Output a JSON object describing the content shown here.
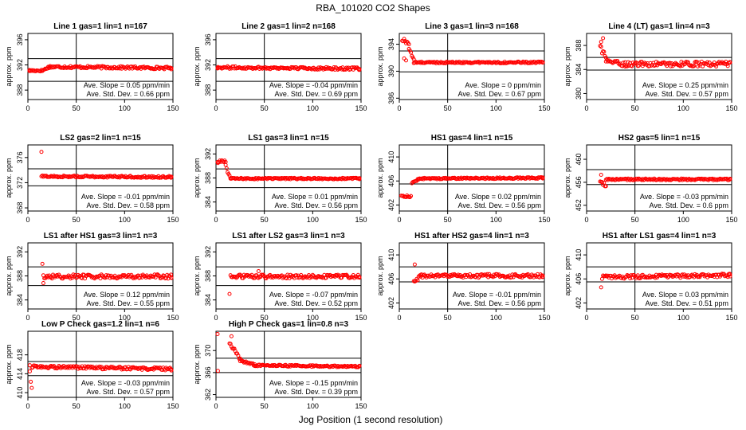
{
  "figure": {
    "title": "RBA_101020  CO2 Shapes",
    "xlabel": "Jog Position (1 second resolution)"
  },
  "colors": {
    "points": "#ff0000",
    "axes": "#000000"
  },
  "chart_data": [
    {
      "type": "scatter",
      "title": "Line 1 gas=1 lin=1 n=167",
      "ylabel": "approx. ppm",
      "xlim": [
        0,
        150
      ],
      "ylim": [
        386.5,
        397
      ],
      "xticks": [
        0,
        50,
        100,
        150
      ],
      "yticks": [
        388,
        392,
        396
      ],
      "hlines": [
        389.4,
        393.0
      ],
      "vline": 50,
      "series": [
        {
          "segments": [
            {
              "x0": 0,
              "x1": 15,
              "y0": 391.1,
              "y1": 391.1,
              "noise": 0.15
            },
            {
              "x0": 15,
              "x1": 22,
              "y0": 391.1,
              "y1": 391.7,
              "noise": 0.15
            },
            {
              "x0": 22,
              "x1": 150,
              "y0": 391.7,
              "y1": 391.5,
              "noise": 0.2
            }
          ],
          "outliers": []
        }
      ],
      "slope": "Ave. Slope =  0.05  ppm/min",
      "stddev": "Ave. Std. Dev. =  0.66  ppm"
    },
    {
      "type": "scatter",
      "title": "Line 2 gas=1 lin=2 n=168",
      "ylabel": "approx. ppm",
      "xlim": [
        0,
        150
      ],
      "ylim": [
        386.5,
        397
      ],
      "xticks": [
        0,
        50,
        100,
        150
      ],
      "yticks": [
        388,
        392,
        396
      ],
      "hlines": [
        389.4,
        393.0
      ],
      "vline": 50,
      "series": [
        {
          "segments": [
            {
              "x0": 0,
              "x1": 150,
              "y0": 391.6,
              "y1": 391.4,
              "noise": 0.2
            }
          ],
          "outliers": []
        }
      ],
      "slope": "Ave. Slope =  -0.04  ppm/min",
      "stddev": "Ave. Std. Dev. =  0.69  ppm"
    },
    {
      "type": "scatter",
      "title": "Line 3 gas=1 lin=3 n=168",
      "ylabel": "approx. ppm",
      "xlim": [
        0,
        150
      ],
      "ylim": [
        385.8,
        395.6
      ],
      "xticks": [
        0,
        50,
        100,
        150
      ],
      "yticks": [
        386,
        390,
        394
      ],
      "hlines": [
        389.9,
        393.0
      ],
      "vline": 50,
      "series": [
        {
          "segments": [
            {
              "x0": 3,
              "x1": 10,
              "y0": 394.6,
              "y1": 394.2,
              "noise": 0.4
            },
            {
              "x0": 10,
              "x1": 15,
              "y0": 393.5,
              "y1": 391.5,
              "noise": 0.3
            },
            {
              "x0": 15,
              "x1": 150,
              "y0": 391.3,
              "y1": 391.3,
              "noise": 0.12
            }
          ],
          "outliers": [
            {
              "x": 7,
              "y": 391.6
            },
            {
              "x": 5,
              "y": 391.9
            }
          ]
        }
      ],
      "slope": "Ave. Slope =  0  ppm/min",
      "stddev": "Ave. Std. Dev. =  0.67  ppm"
    },
    {
      "type": "scatter",
      "title": "Line 4 (LT) gas=1 lin=4 n=3",
      "ylabel": "approx. ppm",
      "xlim": [
        0,
        150
      ],
      "ylim": [
        379,
        390
      ],
      "xticks": [
        0,
        50,
        100,
        150
      ],
      "yticks": [
        380,
        384,
        388
      ],
      "hlines": [
        383.9,
        386.0
      ],
      "vline": 50,
      "series": [
        {
          "segments": [
            {
              "x0": 14,
              "x1": 20,
              "y0": 388,
              "y1": 385.6,
              "noise": 0.6
            },
            {
              "x0": 20,
              "x1": 40,
              "y0": 385.5,
              "y1": 384.8,
              "noise": 0.35
            },
            {
              "x0": 40,
              "x1": 150,
              "y0": 384.9,
              "y1": 384.9,
              "noise": 0.4
            }
          ],
          "outliers": [
            {
              "x": 15,
              "y": 388.6
            },
            {
              "x": 17,
              "y": 389.2
            }
          ]
        }
      ],
      "slope": "Ave. Slope =  0.25  ppm/min",
      "stddev": "Ave. Std. Dev. =  0.57  ppm"
    },
    {
      "type": "scatter",
      "title": "LS2 gas=2 lin=1 n=15",
      "ylabel": "approx. ppm",
      "xlim": [
        0,
        150
      ],
      "ylim": [
        367.5,
        378
      ],
      "xticks": [
        0,
        50,
        100,
        150
      ],
      "yticks": [
        368,
        372,
        376
      ],
      "hlines": [
        371.5,
        374.2
      ],
      "vline": 50,
      "series": [
        {
          "segments": [
            {
              "x0": 14,
              "x1": 150,
              "y0": 373.0,
              "y1": 372.9,
              "noise": 0.15
            }
          ],
          "outliers": [
            {
              "x": 14,
              "y": 376.9
            }
          ]
        }
      ],
      "slope": "Ave. Slope =  -0.01  ppm/min",
      "stddev": "Ave. Std. Dev. =  0.58  ppm"
    },
    {
      "type": "scatter",
      "title": "LS1 gas=3 lin=1 n=15",
      "ylabel": "approx. ppm",
      "xlim": [
        0,
        150
      ],
      "ylim": [
        382.5,
        393.5
      ],
      "xticks": [
        0,
        50,
        100,
        150
      ],
      "yticks": [
        384,
        388,
        392
      ],
      "hlines": [
        386.4,
        389.5
      ],
      "vline": 50,
      "series": [
        {
          "segments": [
            {
              "x0": 1,
              "x1": 10,
              "y0": 390.6,
              "y1": 390.8,
              "noise": 0.25
            },
            {
              "x0": 10,
              "x1": 15,
              "y0": 390,
              "y1": 388,
              "noise": 0.3
            },
            {
              "x0": 15,
              "x1": 150,
              "y0": 387.9,
              "y1": 387.9,
              "noise": 0.12
            }
          ],
          "outliers": []
        }
      ],
      "slope": "Ave. Slope =  0.01  ppm/min",
      "stddev": "Ave. Std. Dev. =  0.56  ppm"
    },
    {
      "type": "scatter",
      "title": "HS1 gas=4 lin=1 n=15",
      "ylabel": "approx. ppm",
      "xlim": [
        0,
        150
      ],
      "ylim": [
        401,
        412
      ],
      "xticks": [
        0,
        50,
        100,
        150
      ],
      "yticks": [
        402,
        406,
        410
      ],
      "hlines": [
        405.5,
        408.0
      ],
      "vline": 50,
      "series": [
        {
          "segments": [
            {
              "x0": 2,
              "x1": 12,
              "y0": 403.5,
              "y1": 403.4,
              "noise": 0.15
            },
            {
              "x0": 13,
              "x1": 20,
              "y0": 405.6,
              "y1": 406.3,
              "noise": 0.2
            },
            {
              "x0": 20,
              "x1": 150,
              "y0": 406.4,
              "y1": 406.5,
              "noise": 0.12
            }
          ],
          "outliers": []
        }
      ],
      "slope": "Ave. Slope =  0.02  ppm/min",
      "stddev": "Ave. Std. Dev. =  0.56  ppm"
    },
    {
      "type": "scatter",
      "title": "HS2 gas=5 lin=1 n=15",
      "ylabel": "approx. ppm",
      "xlim": [
        0,
        150
      ],
      "ylim": [
        451,
        462.5
      ],
      "xticks": [
        0,
        50,
        100,
        150
      ],
      "yticks": [
        452,
        456,
        460
      ],
      "hlines": [
        455.6,
        458.2
      ],
      "vline": 50,
      "series": [
        {
          "segments": [
            {
              "x0": 14,
              "x1": 20,
              "y0": 456,
              "y1": 455.4,
              "noise": 0.3
            },
            {
              "x0": 20,
              "x1": 150,
              "y0": 456.5,
              "y1": 456.5,
              "noise": 0.15
            }
          ],
          "outliers": [
            {
              "x": 15,
              "y": 457.3
            }
          ]
        }
      ],
      "slope": "Ave. Slope =  -0.03  ppm/min",
      "stddev": "Ave. Std. Dev. =  0.6  ppm"
    },
    {
      "type": "scatter",
      "title": "LS1 after HS1 gas=3 lin=1 n=3",
      "ylabel": "approx. ppm",
      "xlim": [
        0,
        150
      ],
      "ylim": [
        382.5,
        393.5
      ],
      "xticks": [
        0,
        50,
        100,
        150
      ],
      "yticks": [
        384,
        388,
        392
      ],
      "hlines": [
        386.4,
        389.5
      ],
      "vline": 50,
      "series": [
        {
          "segments": [
            {
              "x0": 16,
              "x1": 150,
              "y0": 387.9,
              "y1": 387.9,
              "noise": 0.35
            }
          ],
          "outliers": [
            {
              "x": 15,
              "y": 390.0
            },
            {
              "x": 16,
              "y": 386.8
            }
          ]
        }
      ],
      "slope": "Ave. Slope =  0.12  ppm/min",
      "stddev": "Ave. Std. Dev. =  0.55  ppm"
    },
    {
      "type": "scatter",
      "title": "LS1 after LS2 gas=3 lin=1 n=3",
      "ylabel": "approx. ppm",
      "xlim": [
        0,
        150
      ],
      "ylim": [
        382.5,
        393.5
      ],
      "xticks": [
        0,
        50,
        100,
        150
      ],
      "yticks": [
        384,
        388,
        392
      ],
      "hlines": [
        386.4,
        389.5
      ],
      "vline": 50,
      "series": [
        {
          "segments": [
            {
              "x0": 15,
              "x1": 150,
              "y0": 387.9,
              "y1": 387.9,
              "noise": 0.3
            }
          ],
          "outliers": [
            {
              "x": 14,
              "y": 385.0
            },
            {
              "x": 44,
              "y": 388.8
            }
          ]
        }
      ],
      "slope": "Ave. Slope =  -0.07  ppm/min",
      "stddev": "Ave. Std. Dev. =  0.52  ppm"
    },
    {
      "type": "scatter",
      "title": "HS1 after HS2 gas=4 lin=1 n=3",
      "ylabel": "approx. ppm",
      "xlim": [
        0,
        150
      ],
      "ylim": [
        401,
        412
      ],
      "xticks": [
        0,
        50,
        100,
        150
      ],
      "yticks": [
        402,
        406,
        410
      ],
      "hlines": [
        405.5,
        408.0
      ],
      "vline": 50,
      "series": [
        {
          "segments": [
            {
              "x0": 15,
              "x1": 22,
              "y0": 405.2,
              "y1": 406.8,
              "noise": 0.5
            },
            {
              "x0": 22,
              "x1": 150,
              "y0": 406.5,
              "y1": 406.5,
              "noise": 0.3
            }
          ],
          "outliers": [
            {
              "x": 16,
              "y": 408.4
            }
          ]
        }
      ],
      "slope": "Ave. Slope =  -0.01  ppm/min",
      "stddev": "Ave. Std. Dev. =  0.56  ppm"
    },
    {
      "type": "scatter",
      "title": "HS1 after LS1 gas=4 lin=1 n=3",
      "ylabel": "approx. ppm",
      "xlim": [
        0,
        150
      ],
      "ylim": [
        401,
        412
      ],
      "xticks": [
        0,
        50,
        100,
        150
      ],
      "yticks": [
        402,
        406,
        410
      ],
      "hlines": [
        405.5,
        408.0
      ],
      "vline": 50,
      "series": [
        {
          "segments": [
            {
              "x0": 16,
              "x1": 150,
              "y0": 406.3,
              "y1": 406.6,
              "noise": 0.3
            }
          ],
          "outliers": [
            {
              "x": 15,
              "y": 404.6
            }
          ]
        }
      ],
      "slope": "Ave. Slope =  0.03  ppm/min",
      "stddev": "Ave. Std. Dev. =  0.51  ppm"
    },
    {
      "type": "scatter",
      "title": "Low P Check gas=1.2 lin=1 n=6",
      "ylabel": "approx. ppm",
      "xlim": [
        0,
        150
      ],
      "ylim": [
        409,
        423
      ],
      "xticks": [
        0,
        50,
        100,
        150
      ],
      "yticks": [
        410,
        414,
        418
      ],
      "hlines": [
        413.6,
        416.6
      ],
      "vline": 50,
      "series": [
        {
          "segments": [
            {
              "x0": 4,
              "x1": 150,
              "y0": 415.5,
              "y1": 415.0,
              "noise": 0.3
            }
          ],
          "outliers": [
            {
              "x": 2,
              "y": 414.5
            },
            {
              "x": 3,
              "y": 412.3
            },
            {
              "x": 4,
              "y": 411.0
            },
            {
              "x": 2,
              "y": 415.8
            }
          ]
        }
      ],
      "slope": "Ave. Slope =  -0.03  ppm/min",
      "stddev": "Ave. Std. Dev. =  0.57  ppm"
    },
    {
      "type": "scatter",
      "title": "High P Check gas=1 lin=0.8 n=3",
      "ylabel": "approx. ppm",
      "xlim": [
        0,
        150
      ],
      "ylim": [
        361.5,
        373.5
      ],
      "xticks": [
        0,
        50,
        100,
        150
      ],
      "yticks": [
        362,
        366,
        370
      ],
      "hlines": [
        366.0,
        368.6
      ],
      "vline": 50,
      "series": [
        {
          "segments": [
            {
              "x0": 14,
              "x1": 25,
              "y0": 371.5,
              "y1": 368.4,
              "noise": 0.3
            },
            {
              "x0": 25,
              "x1": 40,
              "y0": 368.2,
              "y1": 367.4,
              "noise": 0.2
            },
            {
              "x0": 40,
              "x1": 150,
              "y0": 367.3,
              "y1": 367.1,
              "noise": 0.15
            }
          ],
          "outliers": [
            {
              "x": 1,
              "y": 373.0
            },
            {
              "x": 2,
              "y": 366.3
            },
            {
              "x": 16,
              "y": 372.6
            }
          ]
        }
      ],
      "slope": "Ave. Slope =  -0.15  ppm/min",
      "stddev": "Ave. Std. Dev. =  0.39  ppm"
    }
  ]
}
